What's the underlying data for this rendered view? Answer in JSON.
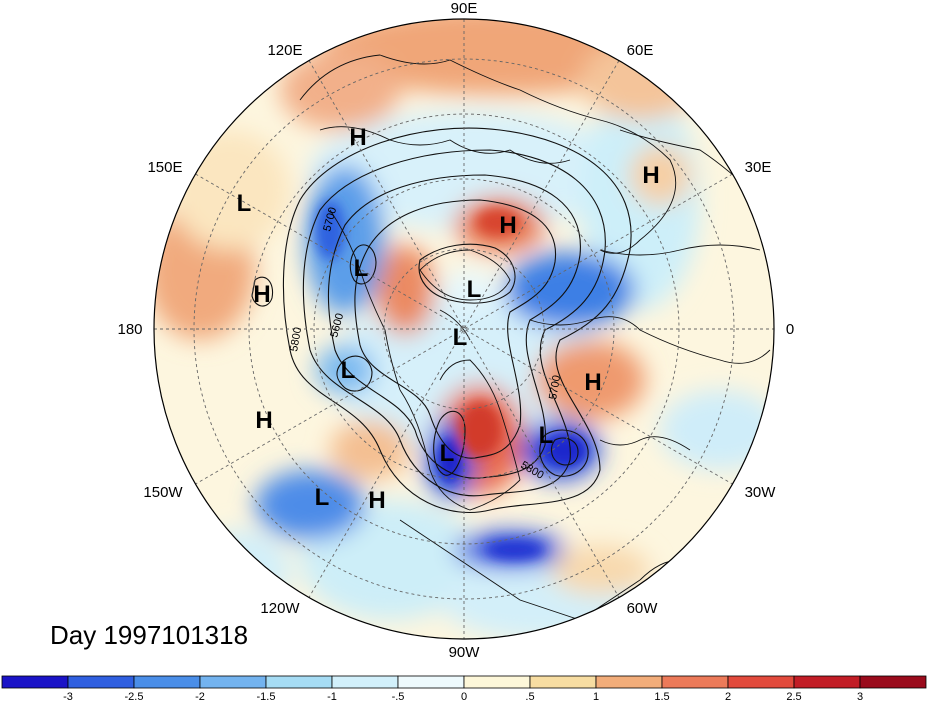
{
  "title": "Day 1997101318",
  "longitude_labels": {
    "e90": "90E",
    "e120": "120E",
    "e60": "60E",
    "e150": "150E",
    "e30": "30E",
    "lon180": "180",
    "lon0": "0",
    "w150": "150W",
    "w30": "30W",
    "w120": "120W",
    "w60": "60W",
    "w90": "90W"
  },
  "pressure_centers": {
    "h1": "H",
    "h2": "H",
    "h3": "H",
    "h4": "H",
    "h5": "H",
    "h6": "H",
    "h7": "H",
    "l1": "L",
    "l2": "L",
    "l3": "L",
    "l4": "L",
    "l5": "L",
    "l6": "L",
    "l7": "L",
    "l8": "L"
  },
  "contour_labels": {
    "c1": "5700",
    "c2": "5600",
    "c3": "5800",
    "c4": "5700",
    "c5": "5800"
  },
  "colorbar": {
    "ticks": [
      "-3",
      "-2.5",
      "-2",
      "-1.5",
      "-1",
      "-.5",
      "0",
      ".5",
      "1",
      "1.5",
      "2",
      "2.5",
      "3"
    ],
    "colors": [
      "#1a13c7",
      "#2f5fe0",
      "#4a8ee8",
      "#73b3ef",
      "#a6dcf4",
      "#d2f0fb",
      "#eefafd",
      "#fdf7d9",
      "#f7dda2",
      "#f2ad7a",
      "#ec7a59",
      "#e24a3c",
      "#c21d26",
      "#9a0b1c"
    ]
  }
}
